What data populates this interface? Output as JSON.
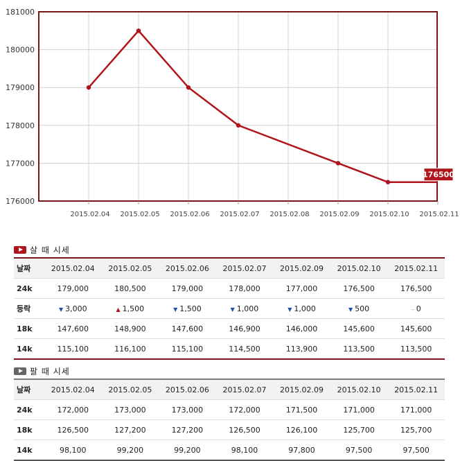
{
  "chart_data": {
    "type": "line",
    "x": [
      "2015.02.04",
      "2015.02.05",
      "2015.02.06",
      "2015.02.07",
      "2015.02.08",
      "2015.02.09",
      "2015.02.10",
      "2015.02.11"
    ],
    "values": [
      179000,
      180500,
      179000,
      178000,
      null,
      177000,
      176500,
      176500
    ],
    "ylim": [
      176000,
      181000
    ],
    "yticks": [
      "176000",
      "177000",
      "178000",
      "179000",
      "180000",
      "181000"
    ],
    "last_value_label": "176500",
    "grid": true,
    "color": "#b0151b",
    "frame_color": "#7a1518"
  },
  "buy": {
    "title": "살 때 시세",
    "icon": "play-icon",
    "icon_color": "#b0151b",
    "header": [
      "날짜",
      "2015.02.04",
      "2015.02.05",
      "2015.02.06",
      "2015.02.07",
      "2015.02.09",
      "2015.02.10",
      "2015.02.11"
    ],
    "rows": [
      {
        "label": "24k",
        "cells": [
          "179,000",
          "180,500",
          "179,000",
          "178,000",
          "177,000",
          "176,500",
          "176,500"
        ]
      },
      {
        "label": "등락",
        "cells": [
          {
            "dir": "down",
            "value": "3,000"
          },
          {
            "dir": "up",
            "value": "1,500"
          },
          {
            "dir": "down",
            "value": "1,500"
          },
          {
            "dir": "down",
            "value": "1,000"
          },
          {
            "dir": "down",
            "value": "1,000"
          },
          {
            "dir": "down",
            "value": "500"
          },
          {
            "dir": "flat",
            "value": "0"
          }
        ]
      },
      {
        "label": "18k",
        "cells": [
          "147,600",
          "148,900",
          "147,600",
          "146,900",
          "146,000",
          "145,600",
          "145,600"
        ]
      },
      {
        "label": "14k",
        "cells": [
          "115,100",
          "116,100",
          "115,100",
          "114,500",
          "113,900",
          "113,500",
          "113,500"
        ]
      }
    ]
  },
  "sell": {
    "title": "팔 때 시세",
    "icon": "play-icon",
    "icon_color": "#666666",
    "header": [
      "날짜",
      "2015.02.04",
      "2015.02.05",
      "2015.02.06",
      "2015.02.07",
      "2015.02.09",
      "2015.02.10",
      "2015.02.11"
    ],
    "rows": [
      {
        "label": "24k",
        "cells": [
          "172,000",
          "173,000",
          "173,000",
          "172,000",
          "171,500",
          "171,000",
          "171,000"
        ]
      },
      {
        "label": "18k",
        "cells": [
          "126,500",
          "127,200",
          "127,200",
          "126,500",
          "126,100",
          "125,700",
          "125,700"
        ]
      },
      {
        "label": "14k",
        "cells": [
          "98,100",
          "99,200",
          "99,200",
          "98,100",
          "97,800",
          "97,500",
          "97,500"
        ]
      }
    ]
  }
}
